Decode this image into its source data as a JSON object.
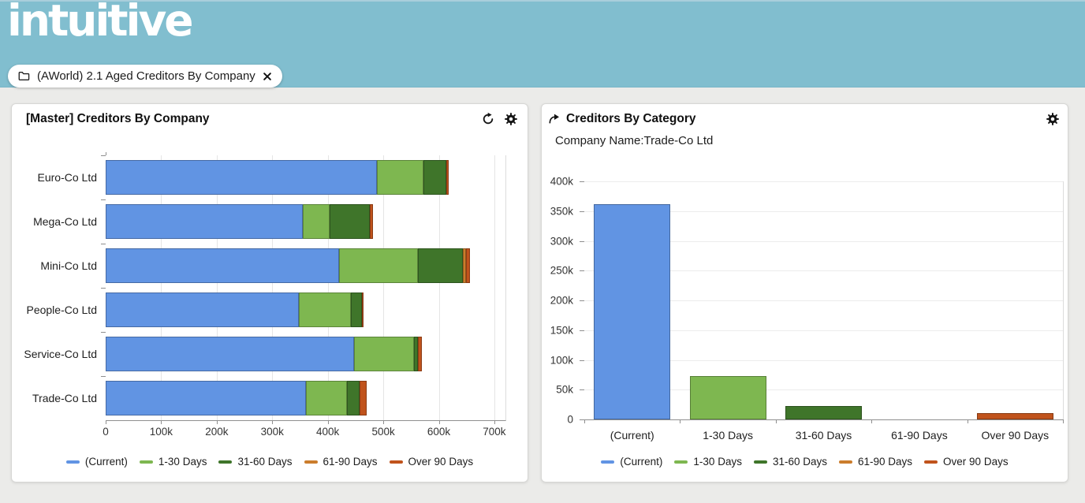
{
  "header": {
    "logo_text": "intuitive",
    "tab": {
      "label": "(AWorld) 2.1 Aged Creditors By Company"
    }
  },
  "icons": {
    "tab_folder": "folder-icon",
    "tab_close": "close-icon",
    "left_panel_actions": [
      "refresh-icon",
      "gear-icon"
    ],
    "right_panel_actions": [
      "gear-icon"
    ],
    "right_title_prefix": "forward-arrow-icon"
  },
  "colors": {
    "header_teal": "#81becf",
    "page_bg": "#ebebe9",
    "panel_bg": "#ffffff",
    "series_current": "#6194e3",
    "series_1_30": "#7eb750",
    "series_31_60": "#3f752a",
    "series_61_90": "#cb7d2c",
    "series_over_90": "#c0531c"
  },
  "chart_data": [
    {
      "type": "bar",
      "orientation": "horizontal",
      "title": "[Master] Creditors By Company",
      "categories": [
        "Euro-Co Ltd",
        "Mega-Co Ltd",
        "Mini-Co Ltd",
        "People-Co Ltd",
        "Service-Co Ltd",
        "Trade-Co Ltd"
      ],
      "series": [
        {
          "name": "(Current)",
          "color": "#6194e3",
          "values": [
            488000,
            355000,
            421000,
            348000,
            448000,
            361000
          ]
        },
        {
          "name": "1-30 Days",
          "color": "#7eb750",
          "values": [
            85000,
            48000,
            142000,
            93000,
            107000,
            73000
          ]
        },
        {
          "name": "31-60 Days",
          "color": "#3f752a",
          "values": [
            41000,
            73000,
            81000,
            20000,
            7000,
            24000
          ]
        },
        {
          "name": "61-90 Days",
          "color": "#cb7d2c",
          "values": [
            0,
            0,
            5000,
            0,
            0,
            0
          ]
        },
        {
          "name": "Over 90 Days",
          "color": "#c0531c",
          "values": [
            4000,
            6000,
            7000,
            4000,
            8000,
            12000
          ]
        }
      ],
      "xlim": [
        0,
        720000
      ],
      "x_ticks": [
        "0",
        "100k",
        "200k",
        "300k",
        "400k",
        "500k",
        "600k",
        "700k"
      ],
      "x_tick_values": [
        0,
        100000,
        200000,
        300000,
        400000,
        500000,
        600000,
        700000
      ],
      "grid": true,
      "legend_position": "bottom"
    },
    {
      "type": "bar",
      "orientation": "vertical",
      "title": "Creditors By Category",
      "subtitle": "Company Name:Trade-Co Ltd",
      "categories": [
        "(Current)",
        "1-30 Days",
        "31-60 Days",
        "61-90 Days",
        "Over 90 Days"
      ],
      "values": [
        362000,
        73000,
        23000,
        0,
        10000
      ],
      "colors": [
        "#6194e3",
        "#7eb750",
        "#3f752a",
        "#cb7d2c",
        "#c0531c"
      ],
      "ylim": [
        0,
        400000
      ],
      "y_ticks": [
        "0",
        "50k",
        "100k",
        "150k",
        "200k",
        "250k",
        "300k",
        "350k",
        "400k"
      ],
      "y_tick_values": [
        0,
        50000,
        100000,
        150000,
        200000,
        250000,
        300000,
        350000,
        400000
      ],
      "legend": {
        "entries": [
          "(Current)",
          "1-30 Days",
          "31-60 Days",
          "61-90 Days",
          "Over 90 Days"
        ],
        "colors": [
          "#6194e3",
          "#7eb750",
          "#3f752a",
          "#cb7d2c",
          "#c0531c"
        ]
      },
      "grid": true,
      "legend_position": "bottom"
    }
  ]
}
